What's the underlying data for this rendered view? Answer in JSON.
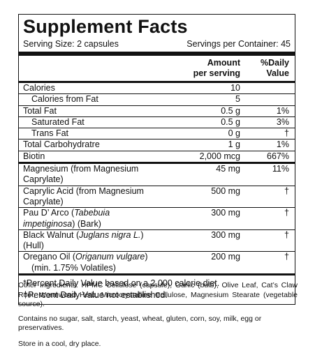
{
  "panel": {
    "title": "Supplement Facts",
    "serving_size": "Serving Size: 2 capsules",
    "servings_per_container": "Servings per Container: 45",
    "header": {
      "amount_line1": "Amount",
      "amount_line2": "per serving",
      "dv_line1": "%Daily",
      "dv_line2": "Value"
    },
    "rows": [
      {
        "name": "Calories",
        "amount": "10",
        "dv": ""
      },
      {
        "name": "Calories from Fat",
        "amount": "5",
        "dv": ""
      },
      {
        "name": "Total Fat",
        "amount": "0.5 g",
        "dv": "1%"
      },
      {
        "name": "Saturated Fat",
        "amount": "0.5 g",
        "dv": "3%"
      },
      {
        "name": "Trans Fat",
        "amount": "0 g",
        "dv": "†"
      },
      {
        "name": "Total Carbohydratre",
        "amount": "1 g",
        "dv": "1%"
      },
      {
        "name": "Biotin",
        "amount": "2,000 mcg",
        "dv": "667%"
      },
      {
        "name": "Magnesium (from Magnesium Caprylate)",
        "amount": "45 mg",
        "dv": "11%"
      },
      {
        "name": "Caprylic Acid (from Magnesium Caprylate)",
        "amount": "500 mg",
        "dv": "†"
      },
      {
        "name_pre": "Pau D’ Arco (",
        "name_italic": "Tabebuia impetiginosa",
        "name_post": ") (Bark)",
        "amount": "300 mg",
        "dv": "†"
      },
      {
        "name_pre": "Black Walnut (",
        "name_italic": "Juglans nigra L.",
        "name_post": ") (Hull)",
        "amount": "300 mg",
        "dv": "†"
      },
      {
        "name_pre": "Oregano Oil (",
        "name_italic": "Origanum vulgare",
        "name_post": ")",
        "name_line2": "(min. 1.75% Volatiles)",
        "amount": "200 mg",
        "dv": "†"
      }
    ],
    "note1": "*Percent Daily Value based on a 2,000 calorie diet.",
    "note2": "†Percent Daily Value not established."
  },
  "footer": {
    "ingredients": "Other Ingredients: HPMC Cellulose (capsule), Garlic (bulb), Olive Leaf, Cat’s Claw Root, Wormwood Herb, Microcrystalline Cellulose, Magnesium Stearate (vegetable source).",
    "contains": "Contains no sugar, salt, starch, yeast, wheat, gluten, corn, soy, milk, egg or preservatives.",
    "storage": "Store in a cool, dry place."
  }
}
